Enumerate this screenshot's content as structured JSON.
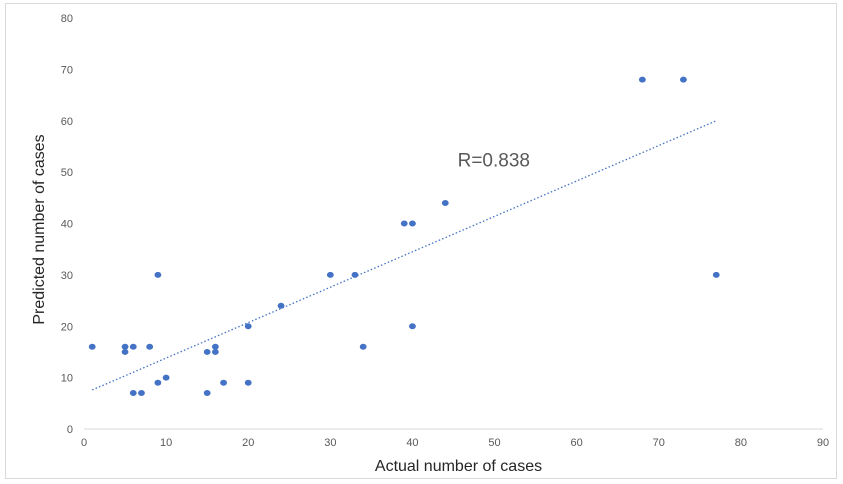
{
  "chart_data": {
    "type": "scatter",
    "title": "",
    "xlabel": "Actual number of cases",
    "ylabel": "Predicted number of cases",
    "xlim": [
      0,
      90
    ],
    "ylim": [
      0,
      80
    ],
    "x_ticks": [
      0,
      10,
      20,
      30,
      40,
      50,
      60,
      70,
      80,
      90
    ],
    "y_ticks": [
      0,
      10,
      20,
      30,
      40,
      50,
      60,
      70,
      80
    ],
    "grid": false,
    "legend": "none",
    "series": [
      {
        "color": "#4472c4",
        "points": [
          [
            1,
            16
          ],
          [
            5,
            16
          ],
          [
            5,
            15
          ],
          [
            6,
            16
          ],
          [
            6,
            7
          ],
          [
            7,
            7
          ],
          [
            8,
            16
          ],
          [
            9,
            30
          ],
          [
            9,
            9
          ],
          [
            10,
            10
          ],
          [
            15,
            15
          ],
          [
            15,
            7
          ],
          [
            16,
            16
          ],
          [
            16,
            15
          ],
          [
            17,
            9
          ],
          [
            20,
            20
          ],
          [
            20,
            9
          ],
          [
            24,
            24
          ],
          [
            30,
            30
          ],
          [
            33,
            30
          ],
          [
            34,
            16
          ],
          [
            39,
            40
          ],
          [
            40,
            40
          ],
          [
            40,
            20
          ],
          [
            44,
            44
          ],
          [
            68,
            68
          ],
          [
            73,
            68
          ],
          [
            77,
            30
          ]
        ]
      }
    ],
    "trendline": {
      "style": "dotted",
      "color": "#4472c4",
      "x_range": [
        1,
        77
      ],
      "y_range": [
        7.6,
        60
      ]
    },
    "annotation": {
      "text": "R=0.838",
      "x": 45.5,
      "y": 52.5
    }
  }
}
